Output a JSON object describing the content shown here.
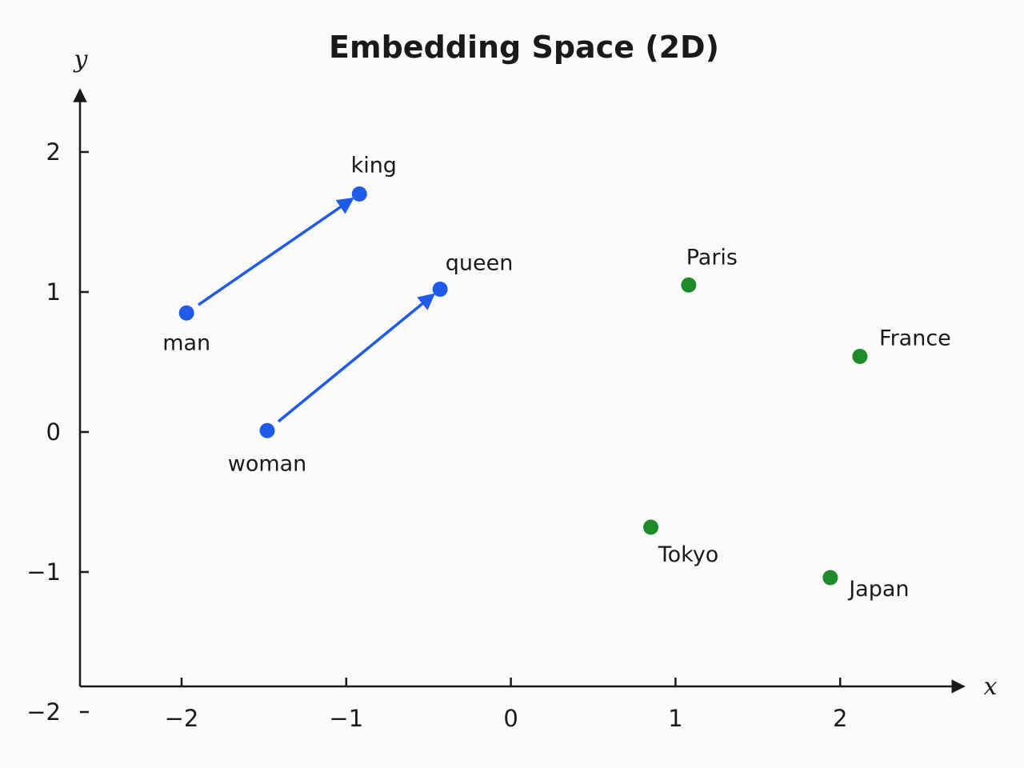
{
  "chart_data": {
    "type": "scatter",
    "title": "Embedding Space (2D)",
    "xlabel": "x",
    "ylabel": "y",
    "xlim": [
      -2.6,
      2.7
    ],
    "ylim": [
      -2,
      2.5
    ],
    "xticks": [
      {
        "value": -2,
        "label": "−2"
      },
      {
        "value": -1,
        "label": "−1"
      },
      {
        "value": 0,
        "label": "0"
      },
      {
        "value": 1,
        "label": "1"
      },
      {
        "value": 2,
        "label": "2"
      }
    ],
    "yticks": [
      {
        "value": -2,
        "label": "−2"
      },
      {
        "value": -1,
        "label": "−1"
      },
      {
        "value": 0,
        "label": "0"
      },
      {
        "value": 1,
        "label": "1"
      },
      {
        "value": 2,
        "label": "2"
      }
    ],
    "grid": false,
    "colors": {
      "blue": "#1f5ae8",
      "green": "#1f8a2a"
    },
    "points": [
      {
        "id": "man",
        "label": "man",
        "x": -1.97,
        "y": 0.85,
        "color": "#1f5ae8",
        "label_position": "below"
      },
      {
        "id": "woman",
        "label": "woman",
        "x": -1.48,
        "y": 0.01,
        "color": "#1f5ae8",
        "label_position": "below"
      },
      {
        "id": "king",
        "label": "king",
        "x": -0.92,
        "y": 1.7,
        "color": "#1f5ae8",
        "label_position": "above-right"
      },
      {
        "id": "queen",
        "label": "queen",
        "x": -0.43,
        "y": 1.02,
        "color": "#1f5ae8",
        "label_position": "above-right"
      },
      {
        "id": "paris",
        "label": "Paris",
        "x": 1.08,
        "y": 1.05,
        "color": "#1f8a2a",
        "label_position": "above-right"
      },
      {
        "id": "france",
        "label": "France",
        "x": 2.12,
        "y": 0.54,
        "color": "#1f8a2a",
        "label_position": "above-right"
      },
      {
        "id": "tokyo",
        "label": "Tokyo",
        "x": 0.85,
        "y": -0.68,
        "color": "#1f8a2a",
        "label_position": "below-right"
      },
      {
        "id": "japan",
        "label": "Japan",
        "x": 1.94,
        "y": -1.04,
        "color": "#1f8a2a",
        "label_position": "below-right"
      }
    ],
    "arrows": [
      {
        "from": "man",
        "to": "king",
        "color": "#1f5ae8"
      },
      {
        "from": "woman",
        "to": "queen",
        "color": "#1f5ae8"
      }
    ]
  }
}
